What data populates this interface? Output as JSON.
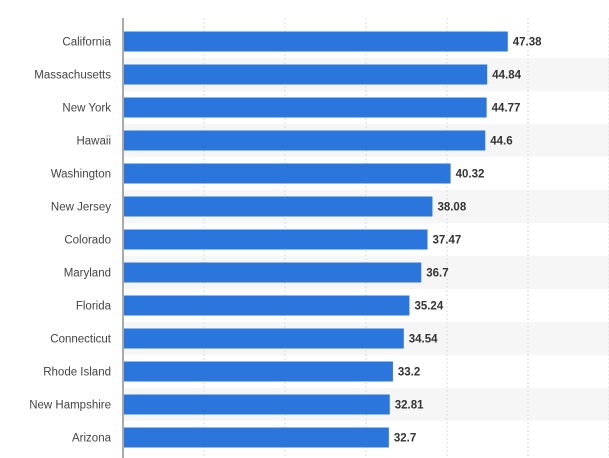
{
  "chart_data": {
    "type": "bar",
    "orientation": "horizontal",
    "categories": [
      "California",
      "Massachusetts",
      "New York",
      "Hawaii",
      "Washington",
      "New Jersey",
      "Colorado",
      "Maryland",
      "Florida",
      "Connecticut",
      "Rhode Island",
      "New Hampshire",
      "Arizona"
    ],
    "values": [
      47.38,
      44.84,
      44.77,
      44.6,
      40.32,
      38.08,
      37.47,
      36.7,
      35.24,
      34.54,
      33.2,
      32.81,
      32.7
    ],
    "value_labels": [
      "47.38",
      "44.84",
      "44.77",
      "44.6",
      "40.32",
      "38.08",
      "37.47",
      "36.7",
      "35.24",
      "34.54",
      "33.2",
      "32.81",
      "32.7"
    ],
    "title": "",
    "xlabel": "",
    "ylabel": "",
    "xlim": [
      0,
      60
    ],
    "grid": true,
    "bar_color": "#2a76dd",
    "alt_row_color": "#f6f6f6",
    "grid_color": "#dddddd"
  }
}
